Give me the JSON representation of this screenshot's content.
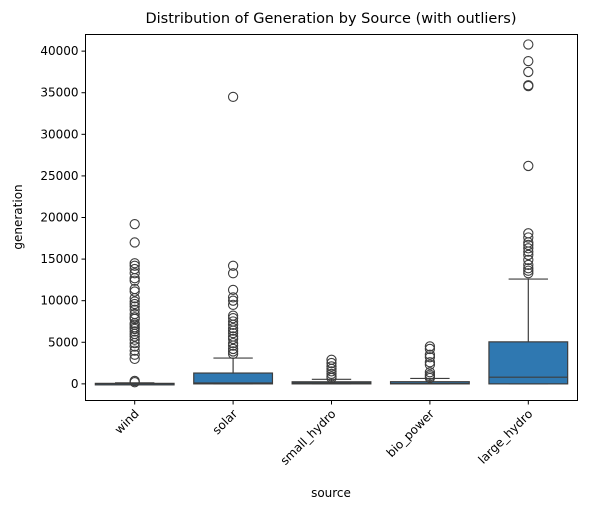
{
  "chart_data": {
    "type": "box",
    "title": "Distribution of Generation by Source (with outliers)",
    "xlabel": "source",
    "ylabel": "generation",
    "ylim": [
      -2000,
      42000
    ],
    "yticks": [
      0,
      5000,
      10000,
      15000,
      20000,
      25000,
      30000,
      35000,
      40000
    ],
    "ytick_labels": [
      "0",
      "5000",
      "10000",
      "15000",
      "20000",
      "25000",
      "30000",
      "35000",
      "40000"
    ],
    "grid": false,
    "box_color": "#2f78b1",
    "categories": [
      "wind",
      "solar",
      "small_hydro",
      "bio_power",
      "large_hydro"
    ],
    "boxes": [
      {
        "category": "wind",
        "whisker_low": 0,
        "q1": 0,
        "median": 20,
        "q3": 60,
        "whisker_high": 120,
        "outliers": [
          19200,
          17000,
          14500,
          14200,
          13800,
          13300,
          12700,
          12400,
          11400,
          11100,
          10300,
          9900,
          9600,
          9300,
          8900,
          8400,
          8000,
          7800,
          7300,
          7100,
          6800,
          6600,
          6300,
          6000,
          5700,
          5300,
          4900,
          4500,
          4000,
          3500,
          3000,
          350,
          200
        ]
      },
      {
        "category": "solar",
        "whisker_low": 0,
        "q1": 0,
        "median": 100,
        "q3": 1300,
        "whisker_high": 3100,
        "outliers": [
          34500,
          14200,
          13300,
          11300,
          10400,
          10000,
          9500,
          8200,
          7900,
          7500,
          7100,
          6700,
          6400,
          6100,
          5700,
          5400,
          4900,
          4600,
          4200,
          3900,
          3600
        ]
      },
      {
        "category": "small_hydro",
        "whisker_low": 0,
        "q1": 0,
        "median": 100,
        "q3": 250,
        "whisker_high": 550,
        "outliers": [
          2900,
          2500,
          2100,
          1800,
          1500,
          1200,
          900,
          700
        ]
      },
      {
        "category": "bio_power",
        "whisker_low": 0,
        "q1": 0,
        "median": 50,
        "q3": 260,
        "whisker_high": 650,
        "outliers": [
          4500,
          4200,
          3500,
          3200,
          2600,
          2300,
          1400,
          1100,
          900,
          700
        ]
      },
      {
        "category": "large_hydro",
        "whisker_low": 0,
        "q1": 0,
        "median": 800,
        "q3": 5050,
        "whisker_high": 12600,
        "outliers": [
          40800,
          38800,
          37500,
          35900,
          35800,
          26200,
          18100,
          17600,
          17000,
          16700,
          16300,
          15900,
          15500,
          14900,
          14300,
          13900,
          13600,
          13300
        ]
      }
    ]
  }
}
